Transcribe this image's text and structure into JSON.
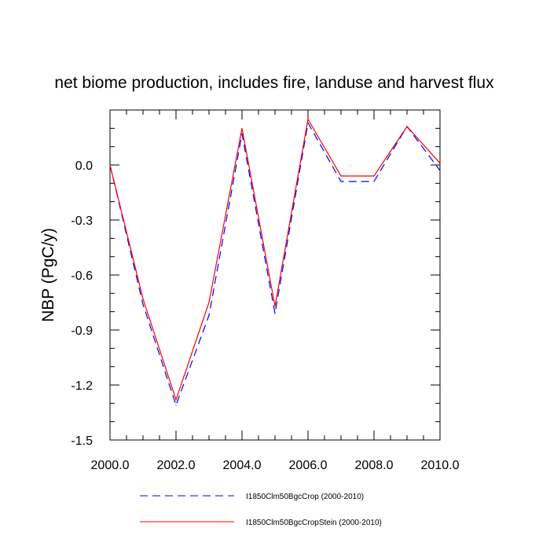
{
  "chart_data": {
    "type": "line",
    "title": "net biome production, includes fire, landuse and harvest flux",
    "xlabel": "",
    "ylabel": "NBP  (PgC/y)",
    "xlim": [
      2000,
      2010
    ],
    "ylim": [
      -1.5,
      0.3
    ],
    "xticks": [
      2000,
      2002,
      2004,
      2006,
      2008,
      2010
    ],
    "xtick_labels": [
      "2000.0",
      "2002.0",
      "2004.0",
      "2006.0",
      "2008.0",
      "2010.0"
    ],
    "yticks": [
      0.0,
      -0.3,
      -0.6,
      -0.9,
      -1.2,
      -1.5
    ],
    "ytick_labels": [
      "0.0",
      "-0.3",
      "-0.6",
      "-0.9",
      "-1.2",
      "-1.5"
    ],
    "grid": false,
    "legend_position": "bottom",
    "x": [
      2000,
      2001,
      2002,
      2003,
      2004,
      2005,
      2006,
      2007,
      2008,
      2009,
      2010
    ],
    "series": [
      {
        "name": "I1850Clm50BgcCrop (2000-2010)",
        "color": "#0000ff",
        "style": "dashed",
        "values": [
          0.0,
          -0.76,
          -1.31,
          -0.82,
          0.17,
          -0.81,
          0.23,
          -0.09,
          -0.09,
          0.21,
          -0.03
        ]
      },
      {
        "name": "I1850Clm50BgcCropStein (2000-2010)",
        "color": "#ff0000",
        "style": "solid",
        "values": [
          0.0,
          -0.73,
          -1.28,
          -0.75,
          0.2,
          -0.77,
          0.25,
          -0.06,
          -0.06,
          0.21,
          0.01
        ]
      }
    ]
  }
}
